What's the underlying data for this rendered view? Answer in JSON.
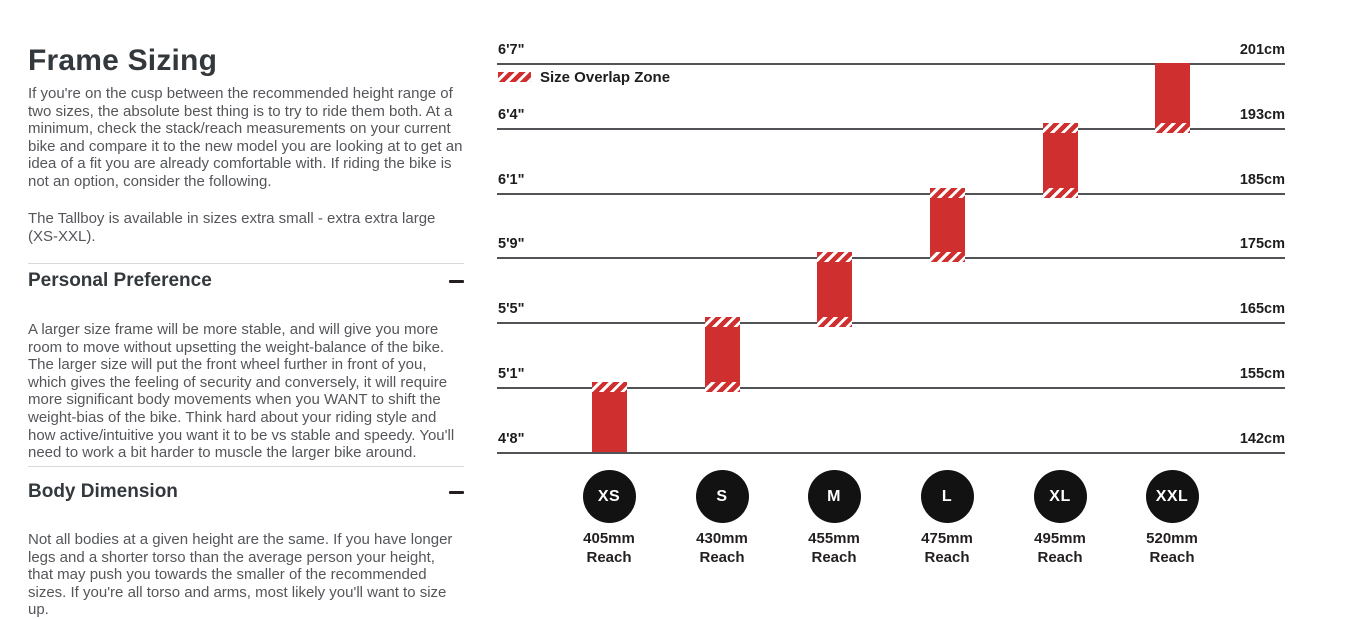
{
  "colors": {
    "accent_red": "#d02f2f",
    "gridline": "#515356",
    "heading_text": "#33383d",
    "body_text": "#54565a",
    "label_text": "#1d1d1f",
    "circle_black": "#121212"
  },
  "left_panel": {
    "title": "Frame Sizing",
    "intro_p1": "If you're on the cusp between the recommended height range of two sizes, the absolute best thing is to try to ride them both. At a minimum, check the stack/reach measurements on your current bike and compare it to the new model you are looking at to get an idea of a fit you are already comfortable with. If riding the bike is not an option, consider the following.",
    "intro_p2": "The Tallboy is available in sizes extra small - extra extra large (XS-XXL).",
    "sections": [
      {
        "heading": "Personal Preference",
        "collapse_icon": "minus-icon",
        "body": "A larger size frame will be more stable, and will give you more room to move without upsetting the weight-balance of the bike. The larger size will put the front wheel further in front of you, which gives the feeling of security and conversely, it will require more significant body movements when you WANT to shift the weight-bias of the bike. Think hard about your riding style and how active/intuitive you want it to be vs stable and speedy. You'll need to work a bit harder to muscle the larger bike around."
      },
      {
        "heading": "Body Dimension",
        "collapse_icon": "minus-icon",
        "body": "Not all bodies at a given height are the same. If you have longer legs and a shorter torso than the average person your height, that may push you towards the smaller of the recommended sizes. If you're all torso and arms, most likely you'll want to size up."
      }
    ]
  },
  "chart_data": {
    "type": "bar",
    "title": "",
    "legend_label": "Size Overlap Zone",
    "legend_position": "top-left",
    "grid": true,
    "left_axis_unit": "feet/inches",
    "right_axis_unit": "cm",
    "height_levels": [
      {
        "imperial": "6'7\"",
        "metric": "201cm"
      },
      {
        "imperial": "6'4\"",
        "metric": "193cm"
      },
      {
        "imperial": "6'1\"",
        "metric": "185cm"
      },
      {
        "imperial": "5'9\"",
        "metric": "175cm"
      },
      {
        "imperial": "5'5\"",
        "metric": "165cm"
      },
      {
        "imperial": "5'1\"",
        "metric": "155cm"
      },
      {
        "imperial": "4'8\"",
        "metric": "142cm"
      }
    ],
    "reach_caption": "Reach",
    "sizes": [
      {
        "label": "XS",
        "reach": "405mm",
        "height_range_imperial": "4'8\"-5'1\"",
        "height_range_metric": "142-155cm",
        "top_level": 5,
        "bottom_level": 6,
        "hatch_top": true,
        "hatch_bottom": false
      },
      {
        "label": "S",
        "reach": "430mm",
        "height_range_imperial": "5'1\"-5'5\"",
        "height_range_metric": "155-165cm",
        "top_level": 4,
        "bottom_level": 5,
        "hatch_top": true,
        "hatch_bottom": true
      },
      {
        "label": "M",
        "reach": "455mm",
        "height_range_imperial": "5'5\"-5'9\"",
        "height_range_metric": "165-175cm",
        "top_level": 3,
        "bottom_level": 4,
        "hatch_top": true,
        "hatch_bottom": true
      },
      {
        "label": "L",
        "reach": "475mm",
        "height_range_imperial": "5'9\"-6'1\"",
        "height_range_metric": "175-185cm",
        "top_level": 2,
        "bottom_level": 3,
        "hatch_top": true,
        "hatch_bottom": true
      },
      {
        "label": "XL",
        "reach": "495mm",
        "height_range_imperial": "6'1\"-6'4\"",
        "height_range_metric": "185-193cm",
        "top_level": 1,
        "bottom_level": 2,
        "hatch_top": true,
        "hatch_bottom": true
      },
      {
        "label": "XXL",
        "reach": "520mm",
        "height_range_imperial": "6'4\"-6'7\"",
        "height_range_metric": "193-201cm",
        "top_level": 0,
        "bottom_level": 1,
        "hatch_top": false,
        "hatch_bottom": true
      }
    ]
  }
}
